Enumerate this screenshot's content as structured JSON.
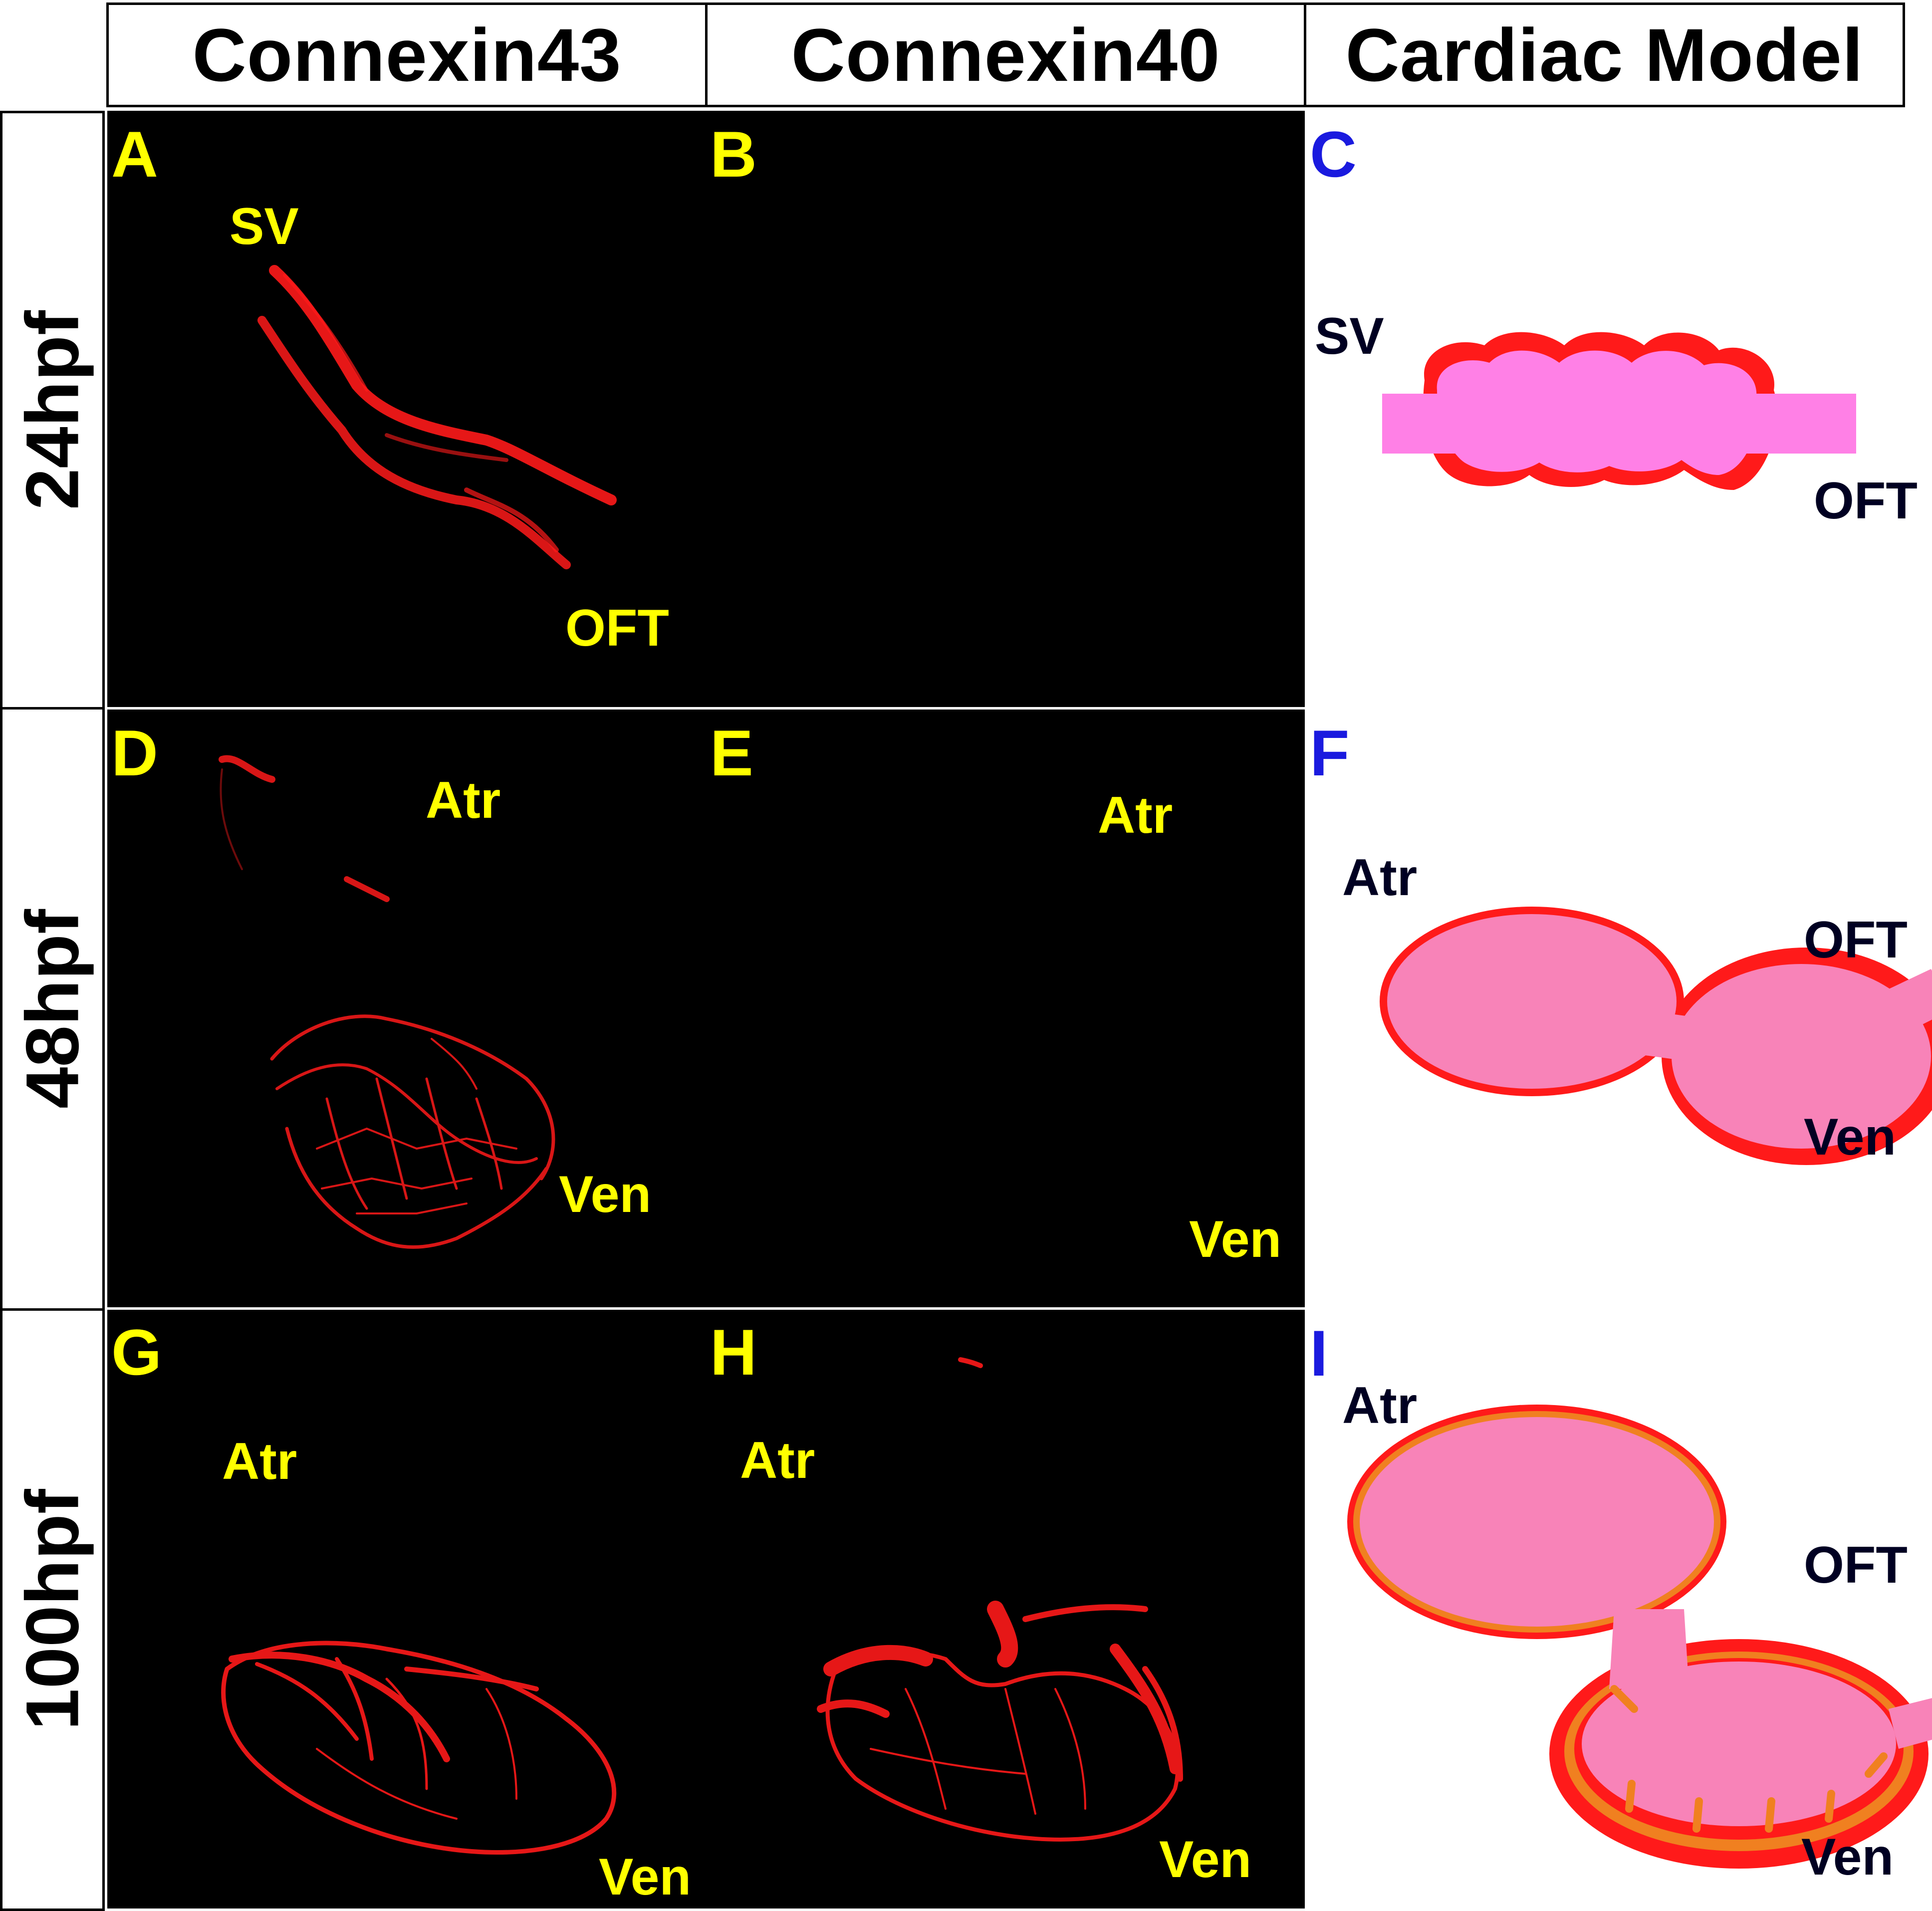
{
  "columns": {
    "c1": "Connexin43",
    "c2": "Connexin40",
    "c3": "Cardiac Model"
  },
  "rows": {
    "r1": "24hpf",
    "r2": "48hpf",
    "r3": "100hpf"
  },
  "panels": {
    "A": {
      "letter": "A",
      "labels": {
        "sv": "SV",
        "oft": "OFT"
      }
    },
    "B": {
      "letter": "B"
    },
    "C": {
      "letter": "C",
      "labels": {
        "sv": "SV",
        "oft": "OFT"
      }
    },
    "D": {
      "letter": "D",
      "labels": {
        "atr": "Atr",
        "ven": "Ven"
      }
    },
    "E": {
      "letter": "E",
      "labels": {
        "atr": "Atr",
        "ven": "Ven"
      }
    },
    "F": {
      "letter": "F",
      "labels": {
        "atr": "Atr",
        "oft": "OFT",
        "ven": "Ven"
      }
    },
    "G": {
      "letter": "G",
      "labels": {
        "atr": "Atr",
        "ven": "Ven"
      }
    },
    "H": {
      "letter": "H",
      "labels": {
        "atr": "Atr",
        "ven": "Ven"
      }
    },
    "I": {
      "letter": "I",
      "labels": {
        "atr": "Atr",
        "oft": "OFT",
        "ven": "Ven"
      }
    }
  },
  "colors": {
    "label_yellow": "#ffff00",
    "panel_letter_blue": "#1a1adf",
    "stain_red": "#ff1a1a",
    "model_pink": "#f883b8",
    "model_magenta": "#ff80e6",
    "model_orange": "#f08020"
  }
}
